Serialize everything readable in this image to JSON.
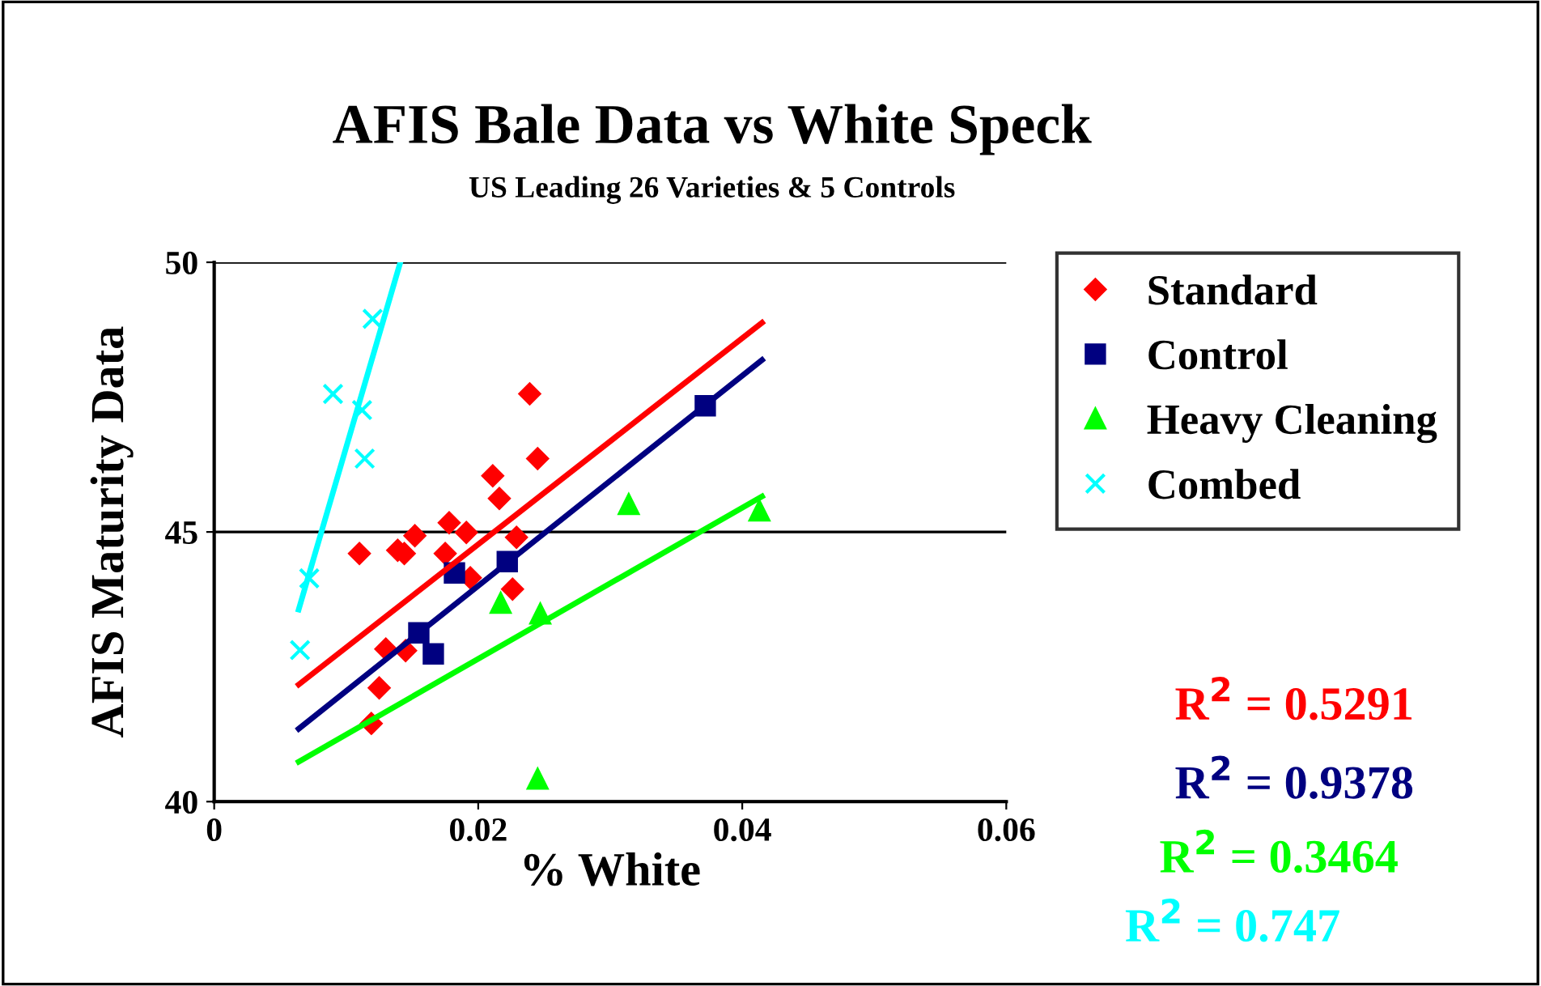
{
  "chart_data": {
    "type": "scatter",
    "title": "AFIS Bale Data vs White Speck",
    "subtitle": "US Leading 26 Varieties & 5 Controls",
    "xlabel": "% White",
    "ylabel": "AFIS Maturity Data",
    "xlim": [
      0,
      0.06
    ],
    "xticks": [
      0,
      0.02,
      0.04,
      0.06
    ],
    "ylim": [
      40,
      50
    ],
    "yticks": [
      40,
      45,
      50
    ],
    "grid": "y",
    "legend": "right",
    "series": [
      {
        "name": "Standard",
        "color": "#ff0000",
        "marker": "diamond",
        "x": [
          0.011,
          0.0139,
          0.0144,
          0.0152,
          0.0178,
          0.0175,
          0.0191,
          0.0194,
          0.0211,
          0.0216,
          0.0229,
          0.0226,
          0.0239,
          0.0245,
          0.013,
          0.0145,
          0.0125,
          0.0119
        ],
        "values": [
          44.6,
          44.66,
          44.6,
          44.93,
          45.17,
          44.6,
          44.99,
          44.15,
          46.04,
          45.62,
          44.9,
          43.94,
          47.56,
          46.36,
          42.83,
          42.8,
          42.11,
          41.45
        ]
      },
      {
        "name": "Control",
        "color": "#000080",
        "marker": "square",
        "x": [
          0.0182,
          0.0222,
          0.0155,
          0.0166,
          0.0372
        ],
        "values": [
          44.24,
          44.45,
          43.13,
          42.74,
          47.34
        ]
      },
      {
        "name": "Heavy Cleaning",
        "color": "#00ff00",
        "marker": "triangle",
        "x": [
          0.0217,
          0.0247,
          0.0314,
          0.0413,
          0.0245
        ],
        "values": [
          43.68,
          43.48,
          45.51,
          45.39,
          40.42
        ]
      },
      {
        "name": "Combed",
        "color": "#00ffff",
        "marker": "cross",
        "x": [
          0.012,
          0.009,
          0.0112,
          0.0114,
          0.0072,
          0.0065
        ],
        "values": [
          48.95,
          47.56,
          47.26,
          46.36,
          44.14,
          42.81
        ]
      },
      {
        "type": "line",
        "color": "#ff0000",
        "marker": "none",
        "x": [
          0.0064,
          0.0415
        ],
        "values": [
          42.17,
          48.88
        ]
      },
      {
        "type": "line",
        "color": "#000080",
        "marker": "none",
        "x": [
          0.0064,
          0.0415
        ],
        "values": [
          41.35,
          48.19
        ]
      },
      {
        "type": "line",
        "color": "#00ff00",
        "marker": "none",
        "x": [
          0.0064,
          0.0415
        ],
        "values": [
          40.74,
          45.66
        ]
      },
      {
        "type": "line",
        "color": "#00ffff",
        "marker": "none",
        "x": [
          0.0064,
          0.0141
        ],
        "values": [
          43.56,
          50.0
        ]
      }
    ],
    "annotations": [
      "R$^{2}$ = 0.5291",
      "R$^{2}$ = 0.9378",
      "R$^{2}$ = 0.3464",
      "R$^{2}$ = 0.747"
    ]
  }
}
